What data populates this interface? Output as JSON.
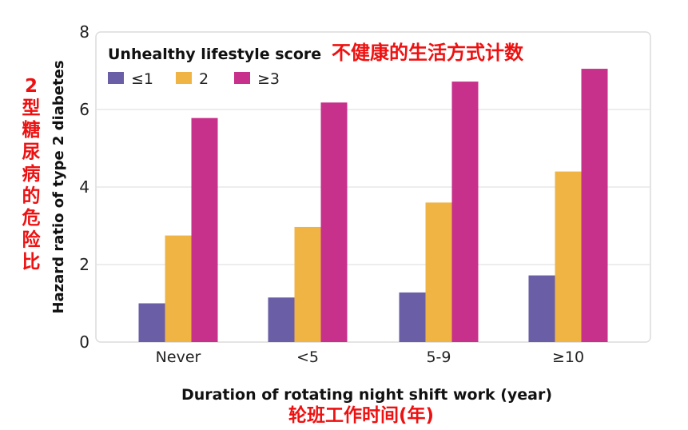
{
  "chart_data": {
    "type": "bar",
    "categories": [
      "Never",
      "<5",
      "5-9",
      "≥10"
    ],
    "series": [
      {
        "name": "≤1",
        "color": "#6a5ea6",
        "values": [
          1.0,
          1.15,
          1.28,
          1.72
        ]
      },
      {
        "name": "2",
        "color": "#f0b445",
        "values": [
          2.75,
          2.97,
          3.6,
          4.4
        ]
      },
      {
        "name": "≥3",
        "color": "#c7308b",
        "values": [
          5.78,
          6.18,
          6.72,
          7.05
        ]
      }
    ],
    "ylim": [
      0,
      8
    ],
    "yticks": [
      "0",
      "2",
      "4",
      "6",
      "8"
    ],
    "ylabel": "Hazard ratio of type 2 diabetes",
    "ylabel_cn": "2型糖尿病的危险比",
    "xlabel": "Duration of rotating night shift work (year)",
    "xlabel_cn": "轮班工作时间(年)",
    "legend_title": "Unhealthy lifestyle score",
    "legend_title_cn": "不健康的生活方式计数",
    "legend_placement": "top-left",
    "grid": true
  }
}
